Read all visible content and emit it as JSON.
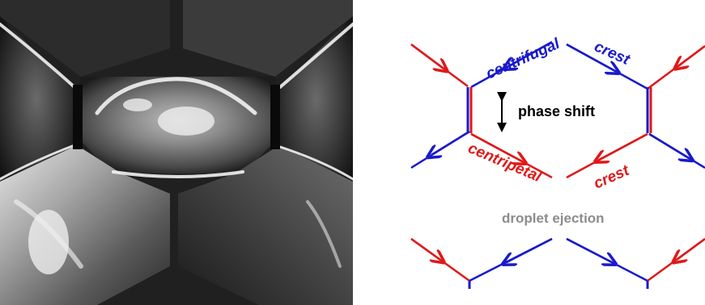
{
  "colors": {
    "blue": "#1a1acc",
    "red": "#e01818",
    "black": "#000000",
    "gray": "#8c8c8c"
  },
  "diagram": {
    "labels": {
      "centrifugal": "centrifugal",
      "crest_top": "crest",
      "phase_shift": "phase shift",
      "centripetal": "centripetal",
      "crest_bottom": "crest",
      "droplet_ejection": "droplet ejection"
    }
  }
}
